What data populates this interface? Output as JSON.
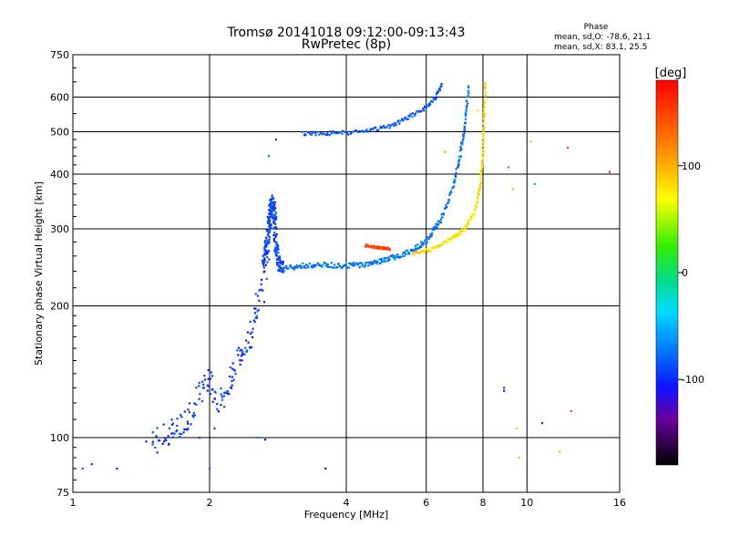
{
  "chart_data": {
    "type": "scatter",
    "title": "Tromsø 20141018 09:12:00-09:13:43",
    "subtitle": "RwPretec (8p)",
    "xlabel": "Frequency [MHz]",
    "ylabel": "Stationary phase Virtual Height [km]",
    "x_scale": "log2",
    "y_scale": "log",
    "xlim": [
      1,
      16
    ],
    "ylim": [
      75,
      750
    ],
    "x_ticks": [
      1,
      2,
      4,
      6,
      8,
      10,
      16
    ],
    "y_ticks": [
      75,
      100,
      200,
      300,
      400,
      500,
      600,
      750
    ],
    "grid": true,
    "color_variable": "phase",
    "colorbar": {
      "label": "[deg]",
      "range": [
        -180,
        180
      ],
      "ticks": [
        100,
        0,
        -100
      ]
    },
    "stats": {
      "title": "Phase",
      "o_line": "mean, sd,O: -78.6, 21.1",
      "x_line": "mean, sd,X:  83.1, 25.5"
    },
    "traces": [
      {
        "points": [
          [
            1.5,
            97
          ],
          [
            1.6,
            101
          ],
          [
            1.7,
            105
          ],
          [
            1.8,
            112
          ],
          [
            1.9,
            125
          ],
          [
            2.0,
            138
          ],
          [
            2.1,
            118
          ],
          [
            2.2,
            130
          ],
          [
            2.3,
            150
          ],
          [
            2.4,
            160
          ],
          [
            2.5,
            180
          ],
          [
            2.6,
            215
          ],
          [
            2.7,
            270
          ]
        ],
        "phase": -95,
        "spread": 0.04,
        "density": 14,
        "labelsz": 3
      },
      {
        "points": [
          [
            2.62,
            248
          ],
          [
            2.66,
            270
          ],
          [
            2.7,
            300
          ],
          [
            2.72,
            330
          ],
          [
            2.75,
            350
          ],
          [
            2.78,
            320
          ],
          [
            2.8,
            275
          ],
          [
            2.84,
            250
          ],
          [
            2.9,
            245
          ]
        ],
        "phase": -90,
        "spread": 0.03,
        "density": 28
      },
      {
        "points": [
          [
            2.9,
            243
          ],
          [
            3.2,
            247
          ],
          [
            3.6,
            248
          ],
          [
            4.0,
            247
          ],
          [
            4.4,
            249
          ],
          [
            4.8,
            254
          ],
          [
            5.2,
            260
          ],
          [
            5.6,
            268
          ],
          [
            6.0,
            282
          ],
          [
            6.4,
            310
          ],
          [
            6.8,
            360
          ],
          [
            7.1,
            430
          ],
          [
            7.3,
            520
          ],
          [
            7.45,
            640
          ]
        ],
        "phase": -75,
        "spread": 0.012,
        "density": 22
      },
      {
        "points": [
          [
            3.2,
            495
          ],
          [
            3.6,
            496
          ],
          [
            4.0,
            497
          ],
          [
            4.5,
            503
          ],
          [
            5.0,
            515
          ],
          [
            5.5,
            540
          ],
          [
            6.0,
            570
          ],
          [
            6.3,
            600
          ],
          [
            6.5,
            640
          ]
        ],
        "phase": -85,
        "spread": 0.01,
        "density": 18
      },
      {
        "points": [
          [
            4.4,
            275
          ],
          [
            4.6,
            273
          ],
          [
            4.8,
            271
          ],
          [
            5.0,
            270
          ]
        ],
        "phase": 150,
        "spread": 0.006,
        "density": 16
      },
      {
        "points": [
          [
            5.6,
            262
          ],
          [
            6.2,
            270
          ],
          [
            6.8,
            285
          ],
          [
            7.3,
            300
          ],
          [
            7.7,
            330
          ],
          [
            7.9,
            380
          ],
          [
            8.0,
            450
          ],
          [
            8.05,
            550
          ],
          [
            8.1,
            650
          ]
        ],
        "phase": 85,
        "spread": 0.01,
        "density": 22
      }
    ],
    "scattered": [
      [
        1.05,
        85,
        -85
      ],
      [
        1.1,
        87,
        -100
      ],
      [
        1.25,
        85,
        -90
      ],
      [
        1.45,
        98,
        -110
      ],
      [
        1.65,
        110,
        -100
      ],
      [
        1.9,
        100,
        -90
      ],
      [
        2.0,
        85,
        -80
      ],
      [
        2.05,
        105,
        -100
      ],
      [
        2.55,
        100,
        -70
      ],
      [
        2.65,
        99,
        -120
      ],
      [
        2.7,
        440,
        -80
      ],
      [
        2.8,
        480,
        -85
      ],
      [
        3.6,
        85,
        -130
      ],
      [
        6.6,
        450,
        110
      ],
      [
        7.8,
        560,
        80
      ],
      [
        8.9,
        130,
        -100
      ],
      [
        8.9,
        128,
        -140
      ],
      [
        9.1,
        415,
        140
      ],
      [
        9.3,
        370,
        110
      ],
      [
        9.5,
        105,
        100
      ],
      [
        9.6,
        90,
        100
      ],
      [
        10.2,
        475,
        50
      ],
      [
        10.4,
        380,
        -60
      ],
      [
        10.8,
        108,
        -100
      ],
      [
        11.8,
        93,
        100
      ],
      [
        12.3,
        460,
        140
      ],
      [
        12.5,
        115,
        150
      ],
      [
        15.2,
        405,
        160
      ]
    ]
  }
}
